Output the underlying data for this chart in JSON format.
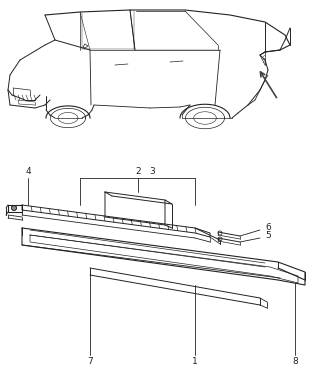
{
  "bg_color": "#ffffff",
  "line_color": "#222222",
  "figsize": [
    3.17,
    3.78
  ],
  "dpi": 100,
  "car_color": "#333333",
  "parts_color": "#222222"
}
